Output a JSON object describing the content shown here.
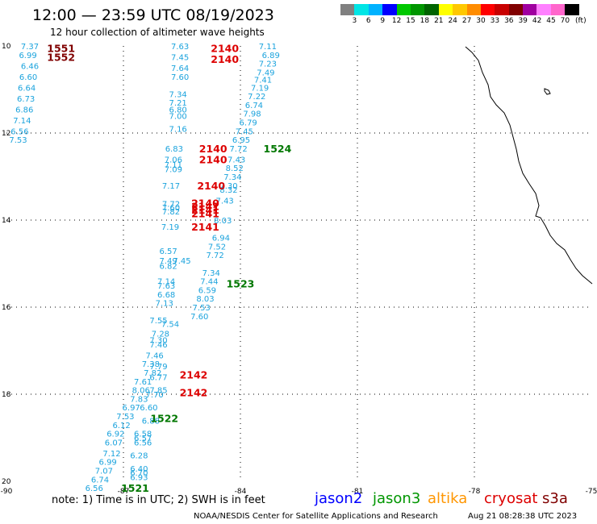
{
  "header": {
    "title": "12:00 — 23:59 UTC 08/19/2023",
    "subtitle": "12 hour collection of altimeter wave heights"
  },
  "legend": {
    "unit": "(ft)",
    "colors": [
      "#808080",
      "#00e5e5",
      "#00b2ff",
      "#0000ff",
      "#00c800",
      "#009600",
      "#006400",
      "#ffff00",
      "#ffc800",
      "#ff8c00",
      "#ff0000",
      "#c80000",
      "#800000",
      "#a000a0",
      "#ff80ff",
      "#ff66cc",
      "#000000"
    ],
    "ticks": [
      "3",
      "6",
      "9",
      "12",
      "15",
      "18",
      "21",
      "24",
      "27",
      "30",
      "33",
      "36",
      "39",
      "42",
      "45",
      "70"
    ]
  },
  "axes": {
    "lon_labels": [
      "-90",
      "-87",
      "-84",
      "-81",
      "-78",
      "-75"
    ],
    "lat_labels": [
      "10",
      "12",
      "14",
      "16",
      "18",
      "20"
    ]
  },
  "readings": [
    {
      "t": "7.37",
      "lon": -89.4,
      "lat": 10.0
    },
    {
      "t": "6.99",
      "lon": -89.45,
      "lat": 10.2
    },
    {
      "t": "6.46",
      "lon": -89.4,
      "lat": 10.45
    },
    {
      "t": "6.60",
      "lon": -89.44,
      "lat": 10.7
    },
    {
      "t": "6.64",
      "lon": -89.48,
      "lat": 10.95
    },
    {
      "t": "6.73",
      "lon": -89.5,
      "lat": 11.2
    },
    {
      "t": "6.86",
      "lon": -89.54,
      "lat": 11.45
    },
    {
      "t": "7.14",
      "lon": -89.6,
      "lat": 11.7
    },
    {
      "t": "6.56",
      "lon": -89.66,
      "lat": 11.95
    },
    {
      "t": "7.53",
      "lon": -89.7,
      "lat": 12.15
    },
    {
      "t": "7.63",
      "lon": -85.55,
      "lat": 10.0
    },
    {
      "t": "7.45",
      "lon": -85.55,
      "lat": 10.25
    },
    {
      "t": "7.64",
      "lon": -85.55,
      "lat": 10.5
    },
    {
      "t": "7.60",
      "lon": -85.55,
      "lat": 10.7
    },
    {
      "t": "7.34",
      "lon": -85.6,
      "lat": 11.1
    },
    {
      "t": "7.21",
      "lon": -85.6,
      "lat": 11.3
    },
    {
      "t": "6.80",
      "lon": -85.6,
      "lat": 11.45
    },
    {
      "t": "7.00",
      "lon": -85.6,
      "lat": 11.6
    },
    {
      "t": "7.16",
      "lon": -85.6,
      "lat": 11.9
    },
    {
      "t": "6.83",
      "lon": -85.7,
      "lat": 12.35
    },
    {
      "t": "7.06",
      "lon": -85.72,
      "lat": 12.6
    },
    {
      "t": "7.11",
      "lon": -85.72,
      "lat": 12.72
    },
    {
      "t": "7.09",
      "lon": -85.72,
      "lat": 12.82
    },
    {
      "t": "7.17",
      "lon": -85.78,
      "lat": 13.2
    },
    {
      "t": "7.72",
      "lon": -85.78,
      "lat": 13.62
    },
    {
      "t": "7.60",
      "lon": -85.78,
      "lat": 13.7
    },
    {
      "t": "7.82",
      "lon": -85.78,
      "lat": 13.8
    },
    {
      "t": "7.19",
      "lon": -85.8,
      "lat": 14.15
    },
    {
      "t": "7.11",
      "lon": -83.3,
      "lat": 10.0
    },
    {
      "t": "6.89",
      "lon": -83.22,
      "lat": 10.2
    },
    {
      "t": "7.23",
      "lon": -83.3,
      "lat": 10.4
    },
    {
      "t": "7.49",
      "lon": -83.35,
      "lat": 10.6
    },
    {
      "t": "7.41",
      "lon": -83.42,
      "lat": 10.77
    },
    {
      "t": "7.19",
      "lon": -83.5,
      "lat": 10.95
    },
    {
      "t": "7.22",
      "lon": -83.58,
      "lat": 11.15
    },
    {
      "t": "6.74",
      "lon": -83.65,
      "lat": 11.35
    },
    {
      "t": "7.98",
      "lon": -83.7,
      "lat": 11.55
    },
    {
      "t": "6.79",
      "lon": -83.8,
      "lat": 11.75
    },
    {
      "t": "7.45",
      "lon": -83.9,
      "lat": 11.95
    },
    {
      "t": "6.95",
      "lon": -83.98,
      "lat": 12.15
    },
    {
      "t": "7.72",
      "lon": -84.05,
      "lat": 12.35
    },
    {
      "t": "7.43",
      "lon": -84.1,
      "lat": 12.6
    },
    {
      "t": "8.52",
      "lon": -84.15,
      "lat": 12.8
    },
    {
      "t": "7.34",
      "lon": -84.2,
      "lat": 13.0
    },
    {
      "t": "7.30",
      "lon": -84.3,
      "lat": 13.2
    },
    {
      "t": "8.32",
      "lon": -84.3,
      "lat": 13.3
    },
    {
      "t": "7.43",
      "lon": -84.4,
      "lat": 13.55
    },
    {
      "t": "8.03",
      "lon": -84.45,
      "lat": 14.0
    },
    {
      "t": "6.94",
      "lon": -84.5,
      "lat": 14.4
    },
    {
      "t": "7.52",
      "lon": -84.6,
      "lat": 14.6
    },
    {
      "t": "7.72",
      "lon": -84.65,
      "lat": 14.8
    },
    {
      "t": "7.34",
      "lon": -84.75,
      "lat": 15.2
    },
    {
      "t": "7.44",
      "lon": -84.8,
      "lat": 15.4
    },
    {
      "t": "6.59",
      "lon": -84.85,
      "lat": 15.6
    },
    {
      "t": "8.03",
      "lon": -84.9,
      "lat": 15.8
    },
    {
      "t": "7.53",
      "lon": -85.0,
      "lat": 16.0
    },
    {
      "t": "7.60",
      "lon": -85.05,
      "lat": 16.2
    },
    {
      "t": "6.57",
      "lon": -85.85,
      "lat": 14.7
    },
    {
      "t": "7.49",
      "lon": -85.85,
      "lat": 14.93
    },
    {
      "t": "7.45",
      "lon": -85.5,
      "lat": 14.93
    },
    {
      "t": "6.82",
      "lon": -85.85,
      "lat": 15.05
    },
    {
      "t": "7.14",
      "lon": -85.9,
      "lat": 15.4
    },
    {
      "t": "7.63",
      "lon": -85.9,
      "lat": 15.5
    },
    {
      "t": "6.68",
      "lon": -85.9,
      "lat": 15.7
    },
    {
      "t": "7.13",
      "lon": -85.95,
      "lat": 15.9
    },
    {
      "t": "7.55",
      "lon": -86.1,
      "lat": 16.3
    },
    {
      "t": "7.54",
      "lon": -85.8,
      "lat": 16.38
    },
    {
      "t": "7.28",
      "lon": -86.05,
      "lat": 16.6
    },
    {
      "t": "7.30",
      "lon": -86.1,
      "lat": 16.75
    },
    {
      "t": "7.46",
      "lon": -86.1,
      "lat": 16.85
    },
    {
      "t": "7.46",
      "lon": -86.2,
      "lat": 17.1
    },
    {
      "t": "7.38",
      "lon": -86.3,
      "lat": 17.3
    },
    {
      "t": "7.79",
      "lon": -86.1,
      "lat": 17.35
    },
    {
      "t": "7.82",
      "lon": -86.25,
      "lat": 17.5
    },
    {
      "t": "6.77",
      "lon": -86.1,
      "lat": 17.6
    },
    {
      "t": "7.61",
      "lon": -86.5,
      "lat": 17.7
    },
    {
      "t": "8.06",
      "lon": -86.55,
      "lat": 17.9
    },
    {
      "t": "7.85",
      "lon": -86.1,
      "lat": 17.9
    },
    {
      "t": "7.70",
      "lon": -86.2,
      "lat": 18.0
    },
    {
      "t": "7.83",
      "lon": -86.6,
      "lat": 18.1
    },
    {
      "t": "6.97",
      "lon": -86.8,
      "lat": 18.3
    },
    {
      "t": "6.60",
      "lon": -86.35,
      "lat": 18.3
    },
    {
      "t": "7.53",
      "lon": -86.95,
      "lat": 18.5
    },
    {
      "t": "6.88",
      "lon": -86.3,
      "lat": 18.6
    },
    {
      "t": "6.12",
      "lon": -87.05,
      "lat": 18.7
    },
    {
      "t": "6.92",
      "lon": -87.2,
      "lat": 18.9
    },
    {
      "t": "6.58",
      "lon": -86.5,
      "lat": 18.9
    },
    {
      "t": "6.57",
      "lon": -86.5,
      "lat": 19.0
    },
    {
      "t": "6.56",
      "lon": -86.5,
      "lat": 19.1
    },
    {
      "t": "6.07",
      "lon": -87.25,
      "lat": 19.1
    },
    {
      "t": "7.12",
      "lon": -87.3,
      "lat": 19.35
    },
    {
      "t": "6.28",
      "lon": -86.6,
      "lat": 19.4
    },
    {
      "t": "6.99",
      "lon": -87.4,
      "lat": 19.55
    },
    {
      "t": "7.07",
      "lon": -87.5,
      "lat": 19.75
    },
    {
      "t": "6.40",
      "lon": -86.6,
      "lat": 19.7
    },
    {
      "t": "6.70",
      "lon": -86.6,
      "lat": 19.8
    },
    {
      "t": "6.93",
      "lon": -86.6,
      "lat": 19.9
    },
    {
      "t": "6.74",
      "lon": -87.6,
      "lat": 19.95
    },
    {
      "t": "6.56",
      "lon": -87.75,
      "lat": 20.15
    }
  ],
  "orbits": [
    {
      "t": "1551",
      "lon": -88.6,
      "lat": 10.05,
      "color": "#800000"
    },
    {
      "t": "1552",
      "lon": -88.6,
      "lat": 10.25,
      "color": "#800000"
    },
    {
      "t": "2140",
      "lon": -84.4,
      "lat": 10.05,
      "color": "#dd0000"
    },
    {
      "t": "2140",
      "lon": -84.4,
      "lat": 10.3,
      "color": "#dd0000"
    },
    {
      "t": "1524",
      "lon": -83.05,
      "lat": 12.35,
      "color": "#007700"
    },
    {
      "t": "2140",
      "lon": -84.7,
      "lat": 12.35,
      "color": "#dd0000"
    },
    {
      "t": "2140",
      "lon": -84.7,
      "lat": 12.6,
      "color": "#dd0000"
    },
    {
      "t": "2140",
      "lon": -84.75,
      "lat": 13.2,
      "color": "#dd0000"
    },
    {
      "t": "2140",
      "lon": -84.9,
      "lat": 13.6,
      "color": "#dd0000"
    },
    {
      "t": "2141",
      "lon": -84.9,
      "lat": 13.68,
      "color": "#dd0000"
    },
    {
      "t": "2141",
      "lon": -84.9,
      "lat": 13.76,
      "color": "#dd0000"
    },
    {
      "t": "2141",
      "lon": -84.9,
      "lat": 13.84,
      "color": "#dd0000"
    },
    {
      "t": "2141",
      "lon": -84.9,
      "lat": 14.15,
      "color": "#dd0000"
    },
    {
      "t": "1523",
      "lon": -84.0,
      "lat": 15.45,
      "color": "#007700"
    },
    {
      "t": "2142",
      "lon": -85.2,
      "lat": 17.55,
      "color": "#dd0000"
    },
    {
      "t": "2142",
      "lon": -85.2,
      "lat": 17.95,
      "color": "#dd0000"
    },
    {
      "t": "1522",
      "lon": -85.95,
      "lat": 18.55,
      "color": "#007700"
    },
    {
      "t": "1521",
      "lon": -86.7,
      "lat": 20.15,
      "color": "#007700"
    }
  ],
  "footer": {
    "note": "note: 1) Time is in UTC; 2) SWH is in feet",
    "missions": [
      {
        "name": "jason2",
        "color": "#0000ff"
      },
      {
        "name": "jason3",
        "color": "#009600"
      },
      {
        "name": "altika",
        "color": "#ff9600"
      },
      {
        "name": "cryosat",
        "color": "#dd0000"
      },
      {
        "name": "s3a",
        "color": "#800000"
      }
    ],
    "credit": "NOAA/NESDIS Center for Satellite Applications and Research",
    "date": "Aug 21 08:28:38 UTC 2023"
  }
}
